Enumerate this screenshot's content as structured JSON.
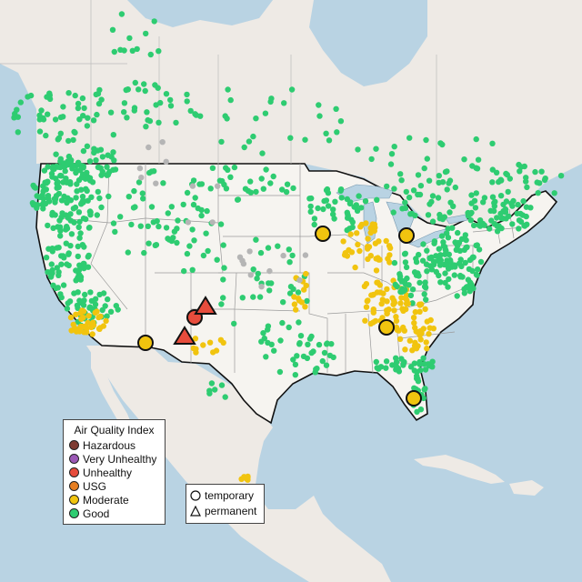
{
  "map": {
    "colors": {
      "ocean": "#b9d3e3",
      "land": "#eeeae5",
      "us_land": "#f6f4f0",
      "border": "#111111",
      "state_line": "#9a9a9a",
      "great_lakes": "#b9d3e3"
    },
    "aqi_colors": {
      "Hazardous": "#7e3b32",
      "Very Unhealthy": "#9b59b6",
      "Unhealthy": "#e74c3c",
      "USG": "#e67e22",
      "Moderate": "#f1c40f",
      "Good": "#2ecc71",
      "No Data": "#b5b5b5"
    }
  },
  "legend": {
    "title": "Air Quality Index",
    "items": [
      {
        "label": "Hazardous",
        "color": "#7e3b32"
      },
      {
        "label": "Very Unhealthy",
        "color": "#9b59b6"
      },
      {
        "label": "Unhealthy",
        "color": "#e74c3c"
      },
      {
        "label": "USG",
        "color": "#e67e22"
      },
      {
        "label": "Moderate",
        "color": "#f1c40f"
      },
      {
        "label": "Good",
        "color": "#2ecc71"
      }
    ]
  },
  "type_legend": {
    "items": [
      {
        "label": "temporary",
        "shape": "circle-icon"
      },
      {
        "label": "permanent",
        "shape": "triangle-icon"
      }
    ]
  }
}
